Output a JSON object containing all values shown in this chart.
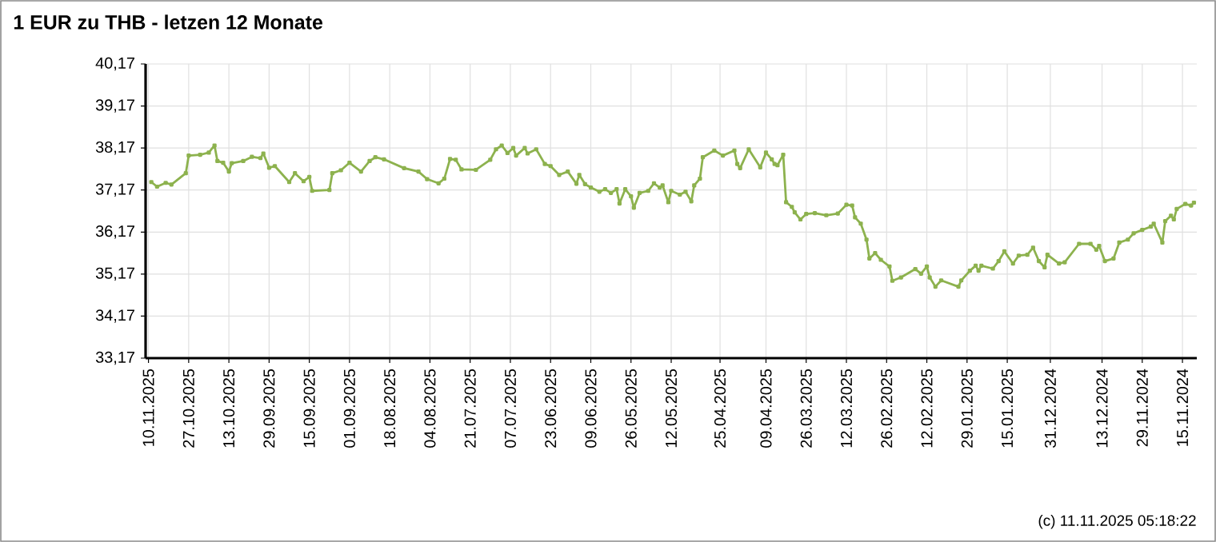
{
  "chart_data": {
    "type": "line",
    "title": "1 EUR zu THB - letzen 12 Monate",
    "annotations": [
      "(c) 11.11.2025 05:18:22"
    ],
    "x": [
      "2025-11-09",
      "2025-11-07",
      "2025-11-04",
      "2025-11-02",
      "2025-10-28",
      "2025-10-27",
      "2025-10-23",
      "2025-10-20",
      "2025-10-18",
      "2025-10-17",
      "2025-10-15",
      "2025-10-13",
      "2025-10-12",
      "2025-10-08",
      "2025-10-05",
      "2025-10-02",
      "2025-10-01",
      "2025-09-29",
      "2025-09-27",
      "2025-09-22",
      "2025-09-20",
      "2025-09-17",
      "2025-09-15",
      "2025-09-14",
      "2025-09-08",
      "2025-09-07",
      "2025-09-04",
      "2025-09-01",
      "2025-08-28",
      "2025-08-25",
      "2025-08-23",
      "2025-08-20",
      "2025-08-13",
      "2025-08-08",
      "2025-08-05",
      "2025-08-01",
      "2025-07-30",
      "2025-07-28",
      "2025-07-26",
      "2025-07-24",
      "2025-07-19",
      "2025-07-14",
      "2025-07-12",
      "2025-07-10",
      "2025-07-08",
      "2025-07-06",
      "2025-07-05",
      "2025-07-02",
      "2025-07-01",
      "2025-06-28",
      "2025-06-25",
      "2025-06-23",
      "2025-06-20",
      "2025-06-17",
      "2025-06-14",
      "2025-06-13",
      "2025-06-11",
      "2025-06-09",
      "2025-06-06",
      "2025-06-04",
      "2025-06-02",
      "2025-05-31",
      "2025-05-30",
      "2025-05-28",
      "2025-05-26",
      "2025-05-25",
      "2025-05-23",
      "2025-05-20",
      "2025-05-18",
      "2025-05-16",
      "2025-05-15",
      "2025-05-13",
      "2025-05-12",
      "2025-05-09",
      "2025-05-07",
      "2025-05-05",
      "2025-05-04",
      "2025-05-02",
      "2025-05-01",
      "2025-04-27",
      "2025-04-24",
      "2025-04-20",
      "2025-04-19",
      "2025-04-18",
      "2025-04-15",
      "2025-04-11",
      "2025-04-09",
      "2025-04-07",
      "2025-04-06",
      "2025-04-05",
      "2025-04-03",
      "2025-04-02",
      "2025-03-31",
      "2025-03-30",
      "2025-03-28",
      "2025-03-26",
      "2025-03-23",
      "2025-03-19",
      "2025-03-15",
      "2025-03-12",
      "2025-03-10",
      "2025-03-09",
      "2025-03-07",
      "2025-03-05",
      "2025-03-04",
      "2025-03-02",
      "2025-02-28",
      "2025-02-25",
      "2025-02-24",
      "2025-02-21",
      "2025-02-16",
      "2025-02-14",
      "2025-02-12",
      "2025-02-11",
      "2025-02-09",
      "2025-02-07",
      "2025-02-01",
      "2025-01-31",
      "2025-01-28",
      "2025-01-26",
      "2025-01-25",
      "2025-01-24",
      "2025-01-20",
      "2025-01-18",
      "2025-01-16",
      "2025-01-13",
      "2025-01-11",
      "2025-01-08",
      "2025-01-06",
      "2025-01-04",
      "2025-01-02",
      "2025-01-01",
      "2024-12-28",
      "2024-12-26",
      "2024-12-21",
      "2024-12-17",
      "2024-12-15",
      "2024-12-14",
      "2024-12-12",
      "2024-12-09",
      "2024-12-07",
      "2024-12-04",
      "2024-12-02",
      "2024-11-29",
      "2024-11-26",
      "2024-11-25",
      "2024-11-22",
      "2024-11-21",
      "2024-11-19",
      "2024-11-18",
      "2024-11-17",
      "2024-11-14",
      "2024-11-12",
      "2024-11-11"
    ],
    "series": [
      {
        "color": "#8db24e",
        "values": [
          37.36,
          37.25,
          37.34,
          37.3,
          37.57,
          37.99,
          38.01,
          38.06,
          38.23,
          37.86,
          37.82,
          37.61,
          37.81,
          37.86,
          37.96,
          37.93,
          38.04,
          37.7,
          37.74,
          37.36,
          37.57,
          37.38,
          37.48,
          37.15,
          37.17,
          37.57,
          37.64,
          37.82,
          37.61,
          37.86,
          37.95,
          37.9,
          37.69,
          37.61,
          37.43,
          37.33,
          37.44,
          37.91,
          37.89,
          37.66,
          37.65,
          37.89,
          38.14,
          38.23,
          38.05,
          38.17,
          37.99,
          38.17,
          38.04,
          38.14,
          37.79,
          37.74,
          37.53,
          37.61,
          37.32,
          37.53,
          37.31,
          37.23,
          37.13,
          37.19,
          37.1,
          37.19,
          36.85,
          37.19,
          37.02,
          36.75,
          37.1,
          37.15,
          37.33,
          37.23,
          37.28,
          36.88,
          37.15,
          37.06,
          37.13,
          36.9,
          37.28,
          37.44,
          37.95,
          38.11,
          37.99,
          38.11,
          37.79,
          37.69,
          38.14,
          37.71,
          38.06,
          37.9,
          37.79,
          37.76,
          38.01,
          36.88,
          36.77,
          36.64,
          36.47,
          36.6,
          36.62,
          36.57,
          36.61,
          36.82,
          36.8,
          36.52,
          36.37,
          35.99,
          35.54,
          35.67,
          35.51,
          35.35,
          35.01,
          35.09,
          35.29,
          35.18,
          35.35,
          35.09,
          34.87,
          35.02,
          34.87,
          35.02,
          35.25,
          35.37,
          35.25,
          35.37,
          35.3,
          35.48,
          35.71,
          35.42,
          35.61,
          35.63,
          35.8,
          35.48,
          35.33,
          35.63,
          35.42,
          35.45,
          35.89,
          35.89,
          35.75,
          35.84,
          35.48,
          35.54,
          35.92,
          35.99,
          36.14,
          36.22,
          36.3,
          36.37,
          35.92,
          36.43,
          36.56,
          36.47,
          36.72,
          36.84,
          36.8,
          36.87
        ]
      }
    ],
    "xlim": [
      "2025-11-11",
      "2024-11-10"
    ],
    "xticks": [
      {
        "value": "2025-11-10",
        "label": "10.11.2025"
      },
      {
        "value": "2025-10-27",
        "label": "27.10.2025"
      },
      {
        "value": "2025-10-13",
        "label": "13.10.2025"
      },
      {
        "value": "2025-09-29",
        "label": "29.09.2025"
      },
      {
        "value": "2025-09-15",
        "label": "15.09.2025"
      },
      {
        "value": "2025-09-01",
        "label": "01.09.2025"
      },
      {
        "value": "2025-08-18",
        "label": "18.08.2025"
      },
      {
        "value": "2025-08-04",
        "label": "04.08.2025"
      },
      {
        "value": "2025-07-21",
        "label": "21.07.2025"
      },
      {
        "value": "2025-07-07",
        "label": "07.07.2025"
      },
      {
        "value": "2025-06-23",
        "label": "23.06.2025"
      },
      {
        "value": "2025-06-09",
        "label": "09.06.2025"
      },
      {
        "value": "2025-05-26",
        "label": "26.05.2025"
      },
      {
        "value": "2025-05-12",
        "label": "12.05.2025"
      },
      {
        "value": "2025-04-25",
        "label": "25.04.2025"
      },
      {
        "value": "2025-04-09",
        "label": "09.04.2025"
      },
      {
        "value": "2025-03-26",
        "label": "26.03.2025"
      },
      {
        "value": "2025-03-12",
        "label": "12.03.2025"
      },
      {
        "value": "2025-02-26",
        "label": "26.02.2025"
      },
      {
        "value": "2025-02-12",
        "label": "12.02.2025"
      },
      {
        "value": "2025-01-29",
        "label": "29.01.2025"
      },
      {
        "value": "2025-01-15",
        "label": "15.01.2025"
      },
      {
        "value": "2024-12-31",
        "label": "31.12.2024"
      },
      {
        "value": "2024-12-13",
        "label": "13.12.2024"
      },
      {
        "value": "2024-11-29",
        "label": "29.11.2024"
      },
      {
        "value": "2024-11-15",
        "label": "15.11.2024"
      }
    ],
    "ylim": [
      33.17,
      40.17
    ],
    "yticks": [
      {
        "value": 33.17,
        "label": "33,17"
      },
      {
        "value": 34.17,
        "label": "34,17"
      },
      {
        "value": 35.17,
        "label": "35,17"
      },
      {
        "value": 36.17,
        "label": "36,17"
      },
      {
        "value": 37.17,
        "label": "37,17"
      },
      {
        "value": 38.17,
        "label": "38,17"
      },
      {
        "value": 39.17,
        "label": "39,17"
      },
      {
        "value": 40.17,
        "label": "40,17"
      }
    ],
    "grid": true,
    "marker": "square",
    "line_style": "solid"
  }
}
